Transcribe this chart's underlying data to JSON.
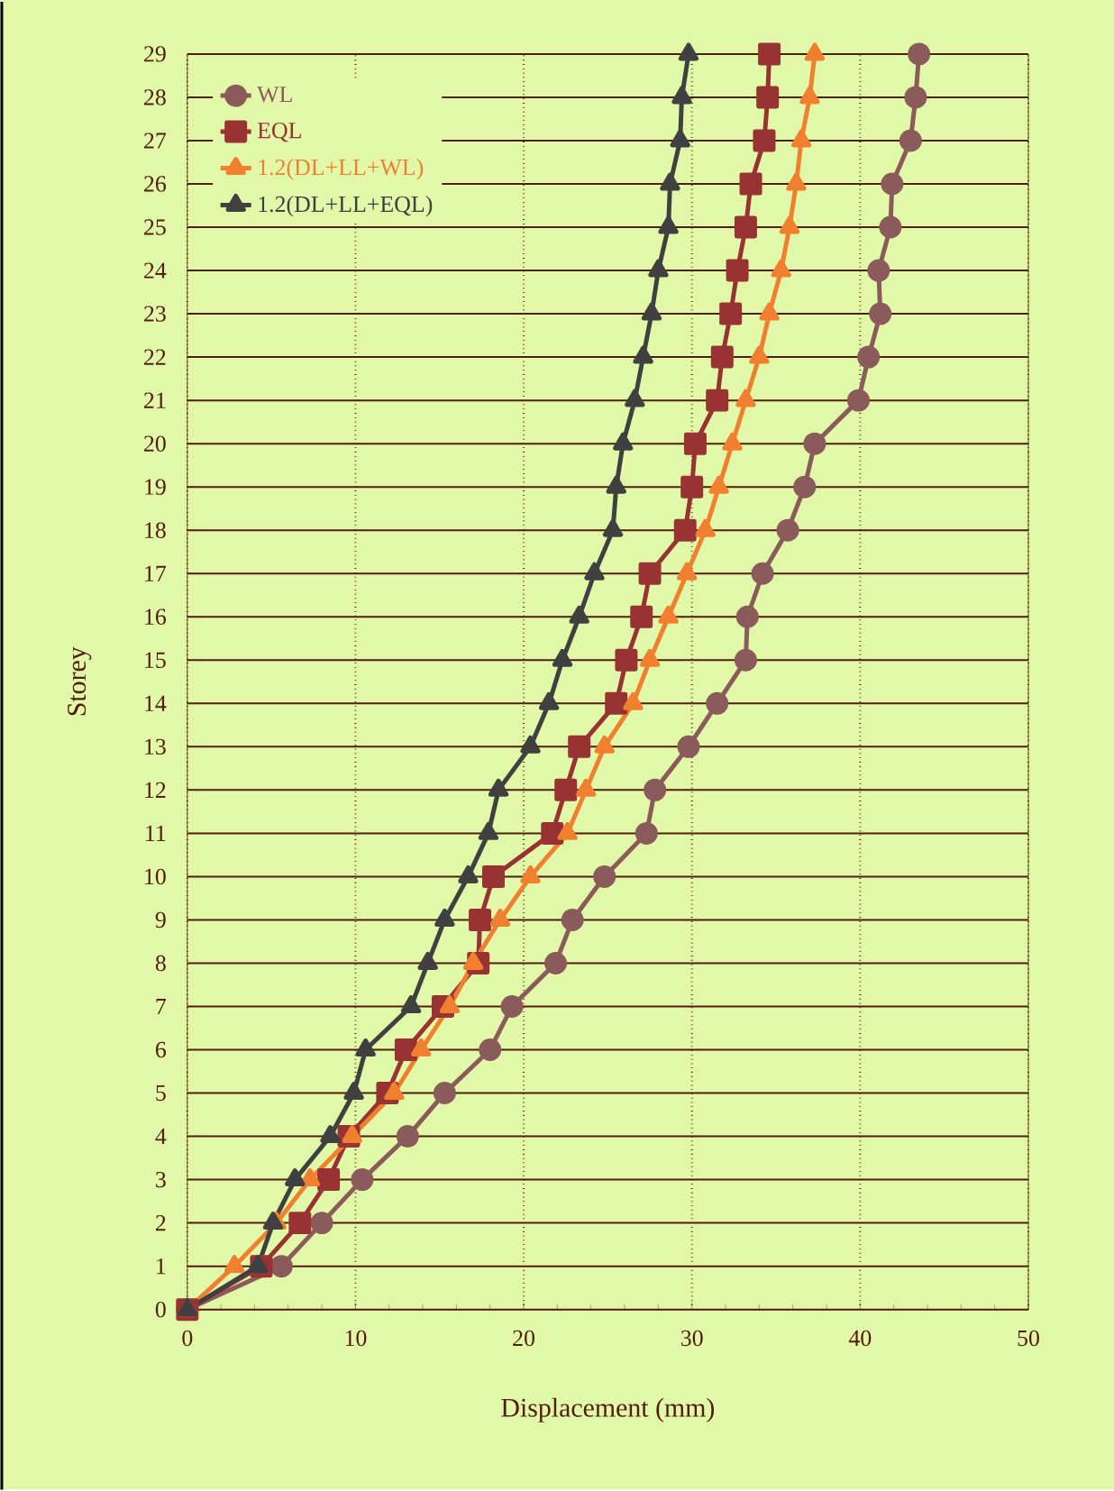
{
  "chart_data": {
    "type": "line",
    "xlabel": "Displacement (mm)",
    "ylabel": "Storey",
    "x": [
      0,
      1,
      2,
      3,
      4,
      5,
      6,
      7,
      8,
      9,
      10,
      11,
      12,
      13,
      14,
      15,
      16,
      17,
      18,
      19,
      20,
      21,
      22,
      23,
      24,
      25,
      26,
      27,
      28,
      29
    ],
    "series": [
      {
        "name": "WL",
        "color": "#8b5a5a",
        "marker": "circle",
        "values": [
          0,
          5.6,
          8.0,
          10.4,
          13.1,
          15.3,
          18.0,
          19.3,
          21.9,
          22.9,
          24.8,
          27.3,
          27.8,
          29.8,
          31.5,
          33.2,
          33.3,
          34.2,
          35.7,
          36.7,
          37.3,
          39.9,
          40.5,
          41.2,
          41.1,
          41.8,
          41.9,
          43.0,
          43.3,
          43.5
        ]
      },
      {
        "name": "EQL",
        "color": "#993333",
        "marker": "square",
        "values": [
          0,
          4.4,
          6.7,
          8.4,
          9.6,
          11.9,
          13.0,
          15.2,
          17.3,
          17.4,
          18.2,
          21.7,
          22.5,
          23.3,
          25.5,
          26.1,
          27.0,
          27.5,
          29.6,
          30.0,
          30.2,
          31.5,
          31.8,
          32.3,
          32.7,
          33.2,
          33.5,
          34.3,
          34.5,
          34.6
        ]
      },
      {
        "name": "1.2(DL+LL+WL)",
        "color": "#f08030",
        "marker": "triangle",
        "values": [
          0,
          2.8,
          5.3,
          7.3,
          9.8,
          12.3,
          13.9,
          15.6,
          17.0,
          18.6,
          20.4,
          22.6,
          23.7,
          24.8,
          26.5,
          27.5,
          28.6,
          29.7,
          30.8,
          31.6,
          32.4,
          33.2,
          34.0,
          34.6,
          35.3,
          35.8,
          36.2,
          36.5,
          37.0,
          37.3
        ]
      },
      {
        "name": "1.2(DL+LL+EQL)",
        "color": "#404040",
        "marker": "triangle",
        "values": [
          0,
          4.2,
          5.1,
          6.4,
          8.5,
          9.9,
          10.6,
          13.3,
          14.3,
          15.3,
          16.7,
          17.9,
          18.5,
          20.4,
          21.5,
          22.3,
          23.3,
          24.2,
          25.3,
          25.5,
          25.9,
          26.6,
          27.1,
          27.6,
          28.0,
          28.6,
          28.7,
          29.3,
          29.4,
          29.8
        ]
      }
    ],
    "orientation": "horizontal",
    "xlim": [
      0,
      50
    ],
    "xticks": [
      0,
      10,
      20,
      30,
      40,
      50
    ],
    "ylim": [
      0,
      29
    ],
    "yticks": [
      0,
      1,
      2,
      3,
      4,
      5,
      6,
      7,
      8,
      9,
      10,
      11,
      12,
      13,
      14,
      15,
      16,
      17,
      18,
      19,
      20,
      21,
      22,
      23,
      24,
      25,
      26,
      27,
      28,
      29
    ],
    "grid": true,
    "legend": "top left",
    "line_style": "solid"
  }
}
